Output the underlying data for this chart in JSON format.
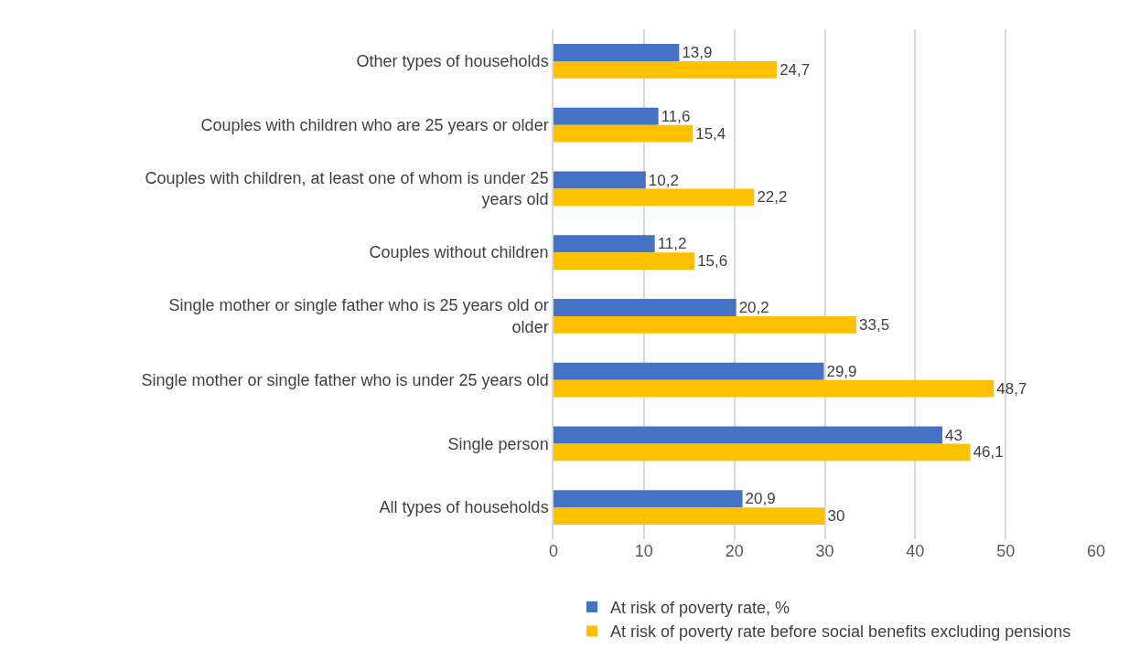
{
  "chart_data": {
    "type": "bar",
    "orientation": "horizontal",
    "categories": [
      "Other types of households",
      "Couples with children who are 25 years or older",
      "Couples with children, at least one of whom is under 25 years old",
      "Couples without children",
      "Single mother or single father who is 25 years old or older",
      "Single mother or single father who is under 25 years old",
      "Single person",
      "All types of households"
    ],
    "series": [
      {
        "name": "At risk of poverty rate, %",
        "color": "#4472c4",
        "values": [
          13.9,
          11.6,
          10.2,
          11.2,
          20.2,
          29.9,
          43,
          20.9
        ],
        "value_labels": [
          "13,9",
          "11,6",
          "10,2",
          "11,2",
          "20,2",
          "29,9",
          "43",
          "20,9"
        ]
      },
      {
        "name": "At risk of poverty rate before social benefits excluding pensions",
        "color": "#ffc000",
        "values": [
          24.7,
          15.4,
          22.2,
          15.6,
          33.5,
          48.7,
          46.1,
          30
        ],
        "value_labels": [
          "24,7",
          "15,4",
          "22,2",
          "15,6",
          "33,5",
          "48,7",
          "46,1",
          "30"
        ]
      }
    ],
    "xlim": [
      0,
      60
    ],
    "xticks": [
      0,
      10,
      20,
      30,
      40,
      50,
      60
    ],
    "grid": "x",
    "legend": "bottom"
  }
}
